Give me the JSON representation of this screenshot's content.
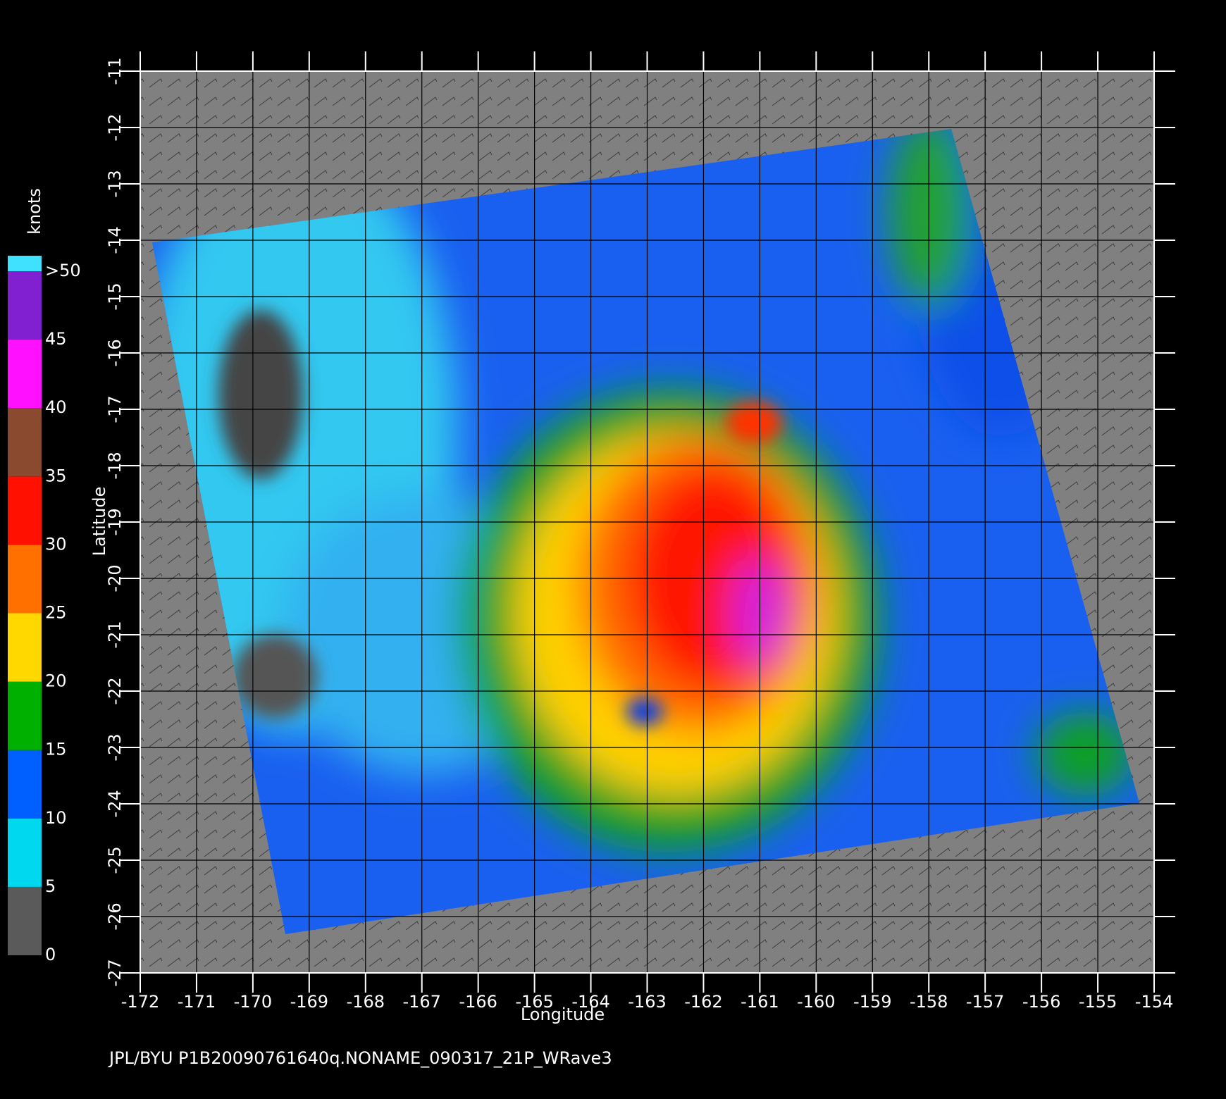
{
  "chart_data": {
    "type": "map",
    "title": "JPL/BYU  P1B20090761640q.NONAME_090317_21P_WRave3",
    "xlabel": "Longitude",
    "ylabel": "Latitude",
    "xlim": [
      -172,
      -154
    ],
    "ylim": [
      -27,
      -11
    ],
    "xticks": [
      -172,
      -171,
      -170,
      -169,
      -168,
      -167,
      -166,
      -165,
      -164,
      -163,
      -162,
      -161,
      -160,
      -159,
      -158,
      -157,
      -156,
      -155,
      -154
    ],
    "yticks": [
      -27,
      -26,
      -25,
      -24,
      -23,
      -22,
      -21,
      -20,
      -19,
      -18,
      -17,
      -16,
      -15,
      -14,
      -13,
      -12,
      -11
    ],
    "grid": true,
    "colorbar": {
      "label": "knots",
      "lim": [
        0,
        50
      ],
      "ticks": [
        0,
        5,
        10,
        15,
        20,
        25,
        30,
        35,
        40,
        45,
        {
          "value": 50,
          "label": ">50"
        }
      ],
      "colors": [
        "#5a5a5a",
        "#00d8f0",
        "#0060ff",
        "#00b000",
        "#ffd800",
        "#ff7000",
        "#ff1000",
        "#8a4a30",
        "#ff10ff",
        "#8020d0"
      ]
    }
  }
}
